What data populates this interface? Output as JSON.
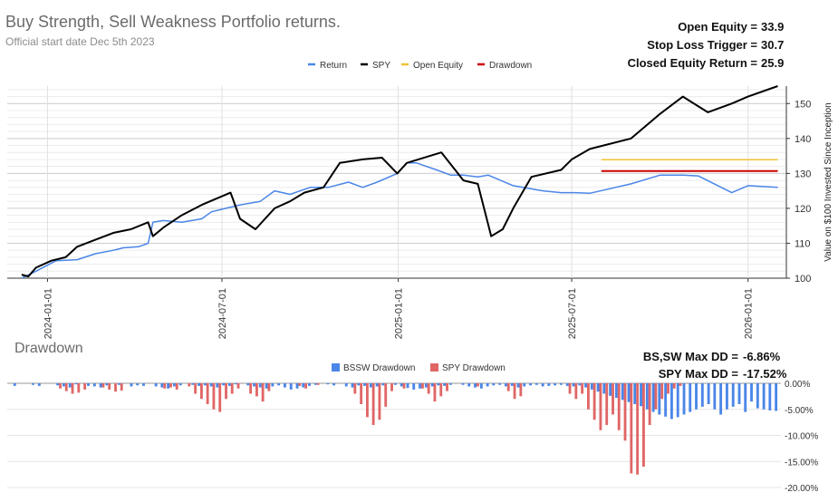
{
  "title": "Buy Strength, Sell Weakness Portfolio returns.",
  "subtitle": "Official start date Dec 5th 2023",
  "stats": [
    {
      "label": "Open Equity =",
      "value": "33.9"
    },
    {
      "label": "Stop Loss Trigger =",
      "value": "30.7"
    },
    {
      "label": "Closed Equity Return =",
      "value": "25.9"
    }
  ],
  "dd_title": "Drawdown",
  "dd_stats": [
    {
      "label": "BS,SW Max DD =",
      "value": "-6.86%"
    },
    {
      "label": "SPY Max DD =",
      "value": "-17.52%"
    }
  ],
  "chart_data": [
    {
      "type": "line",
      "legend_position": "top",
      "ylabel": "Value on $100 Invested Since Inception",
      "ylim": [
        100,
        155
      ],
      "y_ticks": [
        "100",
        "110",
        "120",
        "130",
        "140",
        "150"
      ],
      "x_ticks": [
        "2024-01-01",
        "2024-07-01",
        "2025-01-01",
        "2025-07-01",
        "2026-01-01"
      ],
      "grid": true,
      "colors": {
        "Return": "#4a86e8",
        "SPY": "#000000",
        "Open Equity": "#f1c232",
        "Drawdown": "#cc0000"
      },
      "legend": [
        "Return",
        "SPY",
        "Open Equity",
        "Drawdown"
      ],
      "series": [
        {
          "name": "Return",
          "x": [
            "2023-12-05",
            "2023-12-20",
            "2024-01-10",
            "2024-02-01",
            "2024-02-20",
            "2024-03-10",
            "2024-03-20",
            "2024-04-05",
            "2024-04-15",
            "2024-04-20",
            "2024-05-01",
            "2024-05-20",
            "2024-06-10",
            "2024-06-20",
            "2024-07-05",
            "2024-07-20",
            "2024-08-10",
            "2024-08-25",
            "2024-09-10",
            "2024-10-01",
            "2024-10-20",
            "2024-11-10",
            "2024-11-25",
            "2024-12-10",
            "2024-12-31",
            "2025-01-10",
            "2025-01-20",
            "2025-02-10",
            "2025-02-25",
            "2025-03-10",
            "2025-03-25",
            "2025-04-05",
            "2025-05-01",
            "2025-06-01",
            "2025-06-20",
            "2025-07-05",
            "2025-07-20",
            "2025-09-01",
            "2025-10-01",
            "2025-10-25",
            "2025-11-10",
            "2025-12-15",
            "2026-01-01",
            "2026-02-01"
          ],
          "values": [
            100,
            102,
            105,
            105.3,
            107,
            108,
            108.7,
            109,
            110,
            116,
            116.5,
            116,
            117,
            119,
            120,
            121,
            122,
            125,
            124,
            126,
            126,
            127.5,
            126,
            127.5,
            130,
            133,
            133,
            131,
            129.5,
            129.5,
            129,
            129.5,
            126.5,
            125,
            124.5,
            124.5,
            124.3,
            127,
            129.5,
            129.5,
            129.3,
            124.5,
            126.5,
            126
          ]
        },
        {
          "name": "SPY",
          "x": [
            "2023-12-05",
            "2023-12-12",
            "2023-12-20",
            "2024-01-05",
            "2024-01-20",
            "2024-02-01",
            "2024-02-20",
            "2024-03-10",
            "2024-03-28",
            "2024-04-15",
            "2024-04-20",
            "2024-05-01",
            "2024-05-20",
            "2024-06-10",
            "2024-07-10",
            "2024-07-20",
            "2024-08-05",
            "2024-08-25",
            "2024-09-10",
            "2024-09-25",
            "2024-10-15",
            "2024-11-01",
            "2024-11-25",
            "2024-12-15",
            "2024-12-31",
            "2025-01-10",
            "2025-02-15",
            "2025-03-10",
            "2025-03-25",
            "2025-04-08",
            "2025-04-20",
            "2025-05-01",
            "2025-05-20",
            "2025-06-20",
            "2025-07-01",
            "2025-07-20",
            "2025-09-01",
            "2025-10-01",
            "2025-10-25",
            "2025-11-20",
            "2025-12-15",
            "2026-01-01",
            "2026-02-01"
          ],
          "values": [
            101,
            100.5,
            103,
            105,
            106,
            109,
            111,
            113,
            114,
            116,
            112,
            114.5,
            118,
            121,
            124.5,
            117,
            114,
            120,
            122,
            124.5,
            126,
            133,
            134,
            134.5,
            130,
            133,
            136,
            128,
            127,
            112,
            114,
            120,
            129,
            131,
            134,
            137,
            140,
            147,
            152,
            147.5,
            150,
            152,
            155
          ]
        },
        {
          "name": "Open Equity",
          "x": [
            "2025-08-01",
            "2026-02-01"
          ],
          "values": [
            133.9,
            133.9
          ]
        },
        {
          "name": "Drawdown",
          "x": [
            "2025-08-01",
            "2026-02-01"
          ],
          "values": [
            130.7,
            130.7
          ]
        }
      ]
    },
    {
      "type": "bar",
      "title": "Drawdown",
      "legend_position": "top",
      "ylim": [
        -20,
        0
      ],
      "y_ticks": [
        "0.00%",
        "-5.00%",
        "-10.00%",
        "-15.00%",
        "-20.00%"
      ],
      "colors": {
        "BSSW Drawdown": "#4a86e8",
        "SPY Drawdown": "#e06666"
      },
      "legend": [
        "BSSW Drawdown",
        "SPY Drawdown"
      ],
      "series": [
        {
          "name": "BSSW Drawdown",
          "values": [
            0,
            -0.5,
            0,
            0,
            -0.3,
            -0.5,
            0,
            0,
            -0.4,
            -0.6,
            -0.8,
            -0.2,
            0,
            -0.5,
            -0.6,
            -0.8,
            -0.4,
            0,
            -0.3,
            0,
            -0.6,
            -0.4,
            -0.5,
            0,
            -0.6,
            -0.8,
            -1,
            -0.6,
            -0.4,
            0,
            -0.3,
            -0.5,
            -0.4,
            -0.6,
            -0.8,
            -0.4,
            -0.5,
            -0.2,
            0,
            -0.4,
            -0.6,
            -0.8,
            -1,
            -0.6,
            -0.4,
            -0.8,
            -1.2,
            -1,
            -0.8,
            -0.5,
            -0.3,
            0,
            -0.2,
            -0.4,
            0,
            -0.6,
            -0.8,
            -0.4,
            -0.5,
            -0.8,
            -0.6,
            -0.4,
            0,
            -0.3,
            -0.6,
            -0.9,
            -1.2,
            -1,
            -0.8,
            -0.6,
            -0.4,
            -0.5,
            -0.3,
            0,
            -0.3,
            -0.6,
            -0.8,
            -1,
            -0.6,
            -0.4,
            -0.3,
            -0.6,
            -0.5,
            -0.8,
            -0.6,
            -0.4,
            -0.3,
            -0.6,
            -0.5,
            -0.4,
            -0.3,
            -0.5,
            -0.6,
            -0.4,
            -0.8,
            -1.2,
            -1.6,
            -2,
            -2.4,
            -2.8,
            -3.2,
            -3.6,
            -4,
            -4.4,
            -5,
            -5.5,
            -6,
            -6.4,
            -6.86,
            -6.5,
            -6,
            -5.5,
            -5,
            -4.5,
            -4,
            -5,
            -6,
            -5,
            -4.5,
            -4,
            -5.5,
            -3.5,
            -4.8,
            -5,
            -5.2,
            -5.3
          ]
        },
        {
          "name": "SPY Drawdown",
          "values": [
            0,
            0,
            0,
            0,
            0,
            0,
            0,
            0,
            -1,
            -1.5,
            -2,
            -1.8,
            -1.2,
            0,
            0,
            -0.8,
            -1.2,
            -1.6,
            -1.4,
            0,
            0,
            0,
            0,
            0,
            0,
            -1,
            -0.8,
            -1.2,
            0,
            -0.6,
            -2,
            -3,
            -4,
            -5,
            -5.5,
            -3,
            -2,
            -1,
            0,
            -2,
            -2.5,
            -3.5,
            -1.5,
            0,
            0,
            0,
            0,
            -0.5,
            -1,
            0,
            -0.3,
            0,
            0,
            0,
            0,
            0,
            -2,
            -4,
            -6.5,
            -8,
            -7,
            -4.5,
            -1.5,
            0,
            -1,
            0,
            0,
            -1,
            -2,
            -3.5,
            -2.5,
            -1.5,
            0,
            0,
            0,
            0,
            -0.6,
            0,
            0,
            0,
            0,
            -1.5,
            -3,
            -2.5,
            0,
            0,
            0,
            0,
            0,
            0,
            0,
            -2,
            -3,
            -2,
            -5,
            -7,
            -9,
            -8,
            -6,
            -9,
            -11,
            -17.3,
            -17.52,
            -16,
            -8,
            -5,
            -3,
            -2,
            -1,
            -0.5,
            0,
            0,
            0,
            0,
            0,
            0,
            0,
            0,
            0,
            0,
            0,
            0,
            0,
            0,
            0,
            0
          ]
        }
      ]
    }
  ]
}
